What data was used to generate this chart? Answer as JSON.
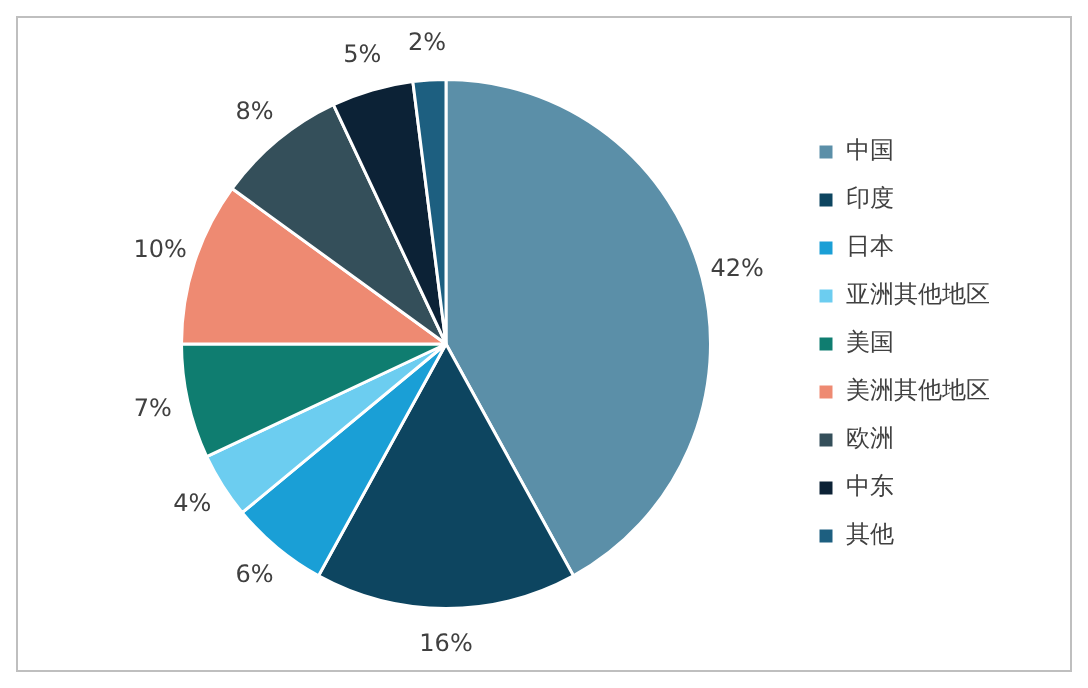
{
  "chart_data": {
    "type": "pie",
    "categories": [
      "中国",
      "印度",
      "日本",
      "亚洲其他地区",
      "美国",
      "美洲其他地区",
      "欧洲",
      "中东",
      "其他"
    ],
    "values": [
      42,
      16,
      6,
      4,
      7,
      10,
      8,
      5,
      2
    ],
    "value_labels": [
      "42%",
      "16%",
      "6%",
      "4%",
      "7%",
      "10%",
      "8%",
      "5%",
      "2%"
    ],
    "colors": [
      "#5b8fa8",
      "#0d4560",
      "#1a9fd6",
      "#6ccdf0",
      "#0f7d70",
      "#ee8a72",
      "#344f5a",
      "#0c2236",
      "#1d5f80"
    ],
    "legend": "right"
  }
}
